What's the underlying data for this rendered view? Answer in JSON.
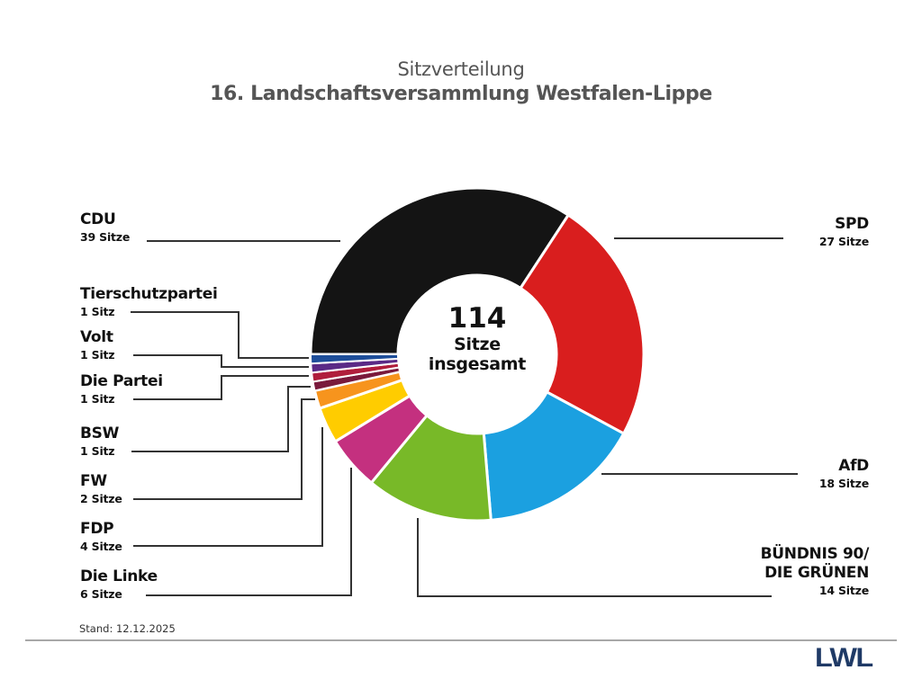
{
  "header": {
    "subtitle": "Sitzverteilung",
    "title": "16. Landschaftsversammlung Westfalen-Lippe"
  },
  "center": {
    "total": "114",
    "unit_line1": "Sitze",
    "unit_line2": "insgesamt"
  },
  "labels": {
    "cdu": {
      "name": "CDU",
      "seats": "39 Sitze"
    },
    "spd": {
      "name": "SPD",
      "seats": "27 Sitze"
    },
    "afd": {
      "name": "AfD",
      "seats": "18 Sitze"
    },
    "gruene": {
      "name_line1": "BÜNDNIS 90/",
      "name_line2": "DIE GRÜNEN",
      "seats": "14 Sitze"
    },
    "linke": {
      "name": "Die Linke",
      "seats": "6 Sitze"
    },
    "fdp": {
      "name": "FDP",
      "seats": "4 Sitze"
    },
    "fw": {
      "name": "FW",
      "seats": "2 Sitze"
    },
    "bsw": {
      "name": "BSW",
      "seats": "1 Sitz"
    },
    "partei": {
      "name": "Die Partei",
      "seats": "1 Sitz"
    },
    "volt": {
      "name": "Volt",
      "seats": "1 Sitz"
    },
    "tierschutz": {
      "name": "Tierschutzpartei",
      "seats": "1 Sitz"
    }
  },
  "footer": {
    "stand": "Stand: 12.12.2025",
    "logo_text": "LWL",
    "logo_color": "#1f3a66"
  },
  "chart_data": {
    "type": "pie",
    "variant": "donut",
    "title": "16. Landschaftsversammlung Westfalen-Lippe",
    "subtitle": "Sitzverteilung",
    "center_label": "114 Sitze insgesamt",
    "total": 114,
    "start_position": "9 o'clock, clockwise",
    "categories": [
      "CDU",
      "SPD",
      "AfD",
      "BÜNDNIS 90/DIE GRÜNEN",
      "Die Linke",
      "FDP",
      "FW",
      "BSW",
      "Die Partei",
      "Volt",
      "Tierschutzpartei"
    ],
    "values": [
      39,
      27,
      18,
      14,
      6,
      4,
      2,
      1,
      1,
      1,
      1
    ],
    "colors": [
      "#141414",
      "#d91e1e",
      "#1ba0e0",
      "#78b928",
      "#c4307f",
      "#ffcc00",
      "#f7941d",
      "#7a1a3c",
      "#b01e3c",
      "#5a2a86",
      "#1e4e9a"
    ],
    "legend_position": "leader-line labels around donut",
    "annotation": "Stand: 12.12.2025"
  }
}
